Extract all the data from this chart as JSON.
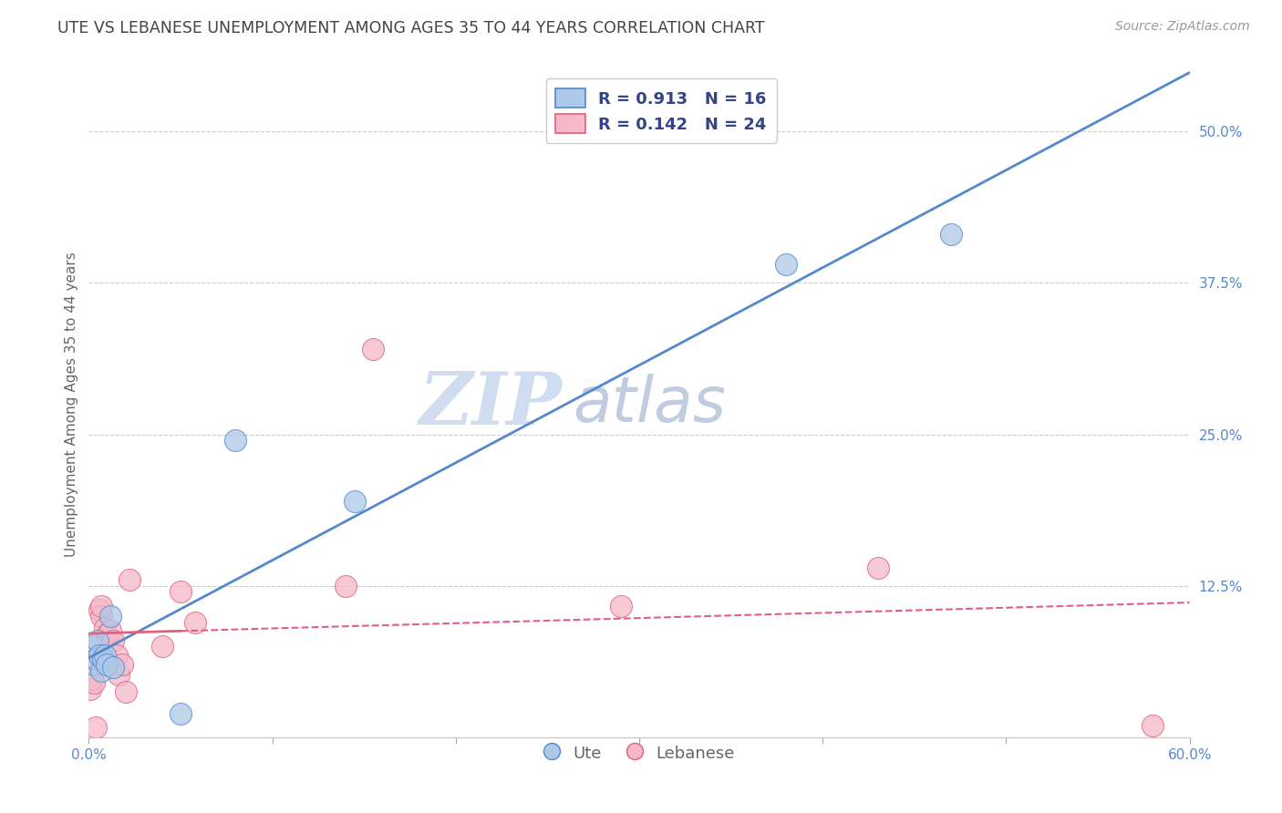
{
  "title": "UTE VS LEBANESE UNEMPLOYMENT AMONG AGES 35 TO 44 YEARS CORRELATION CHART",
  "source": "Source: ZipAtlas.com",
  "ylabel": "Unemployment Among Ages 35 to 44 years",
  "xlim": [
    0.0,
    0.6
  ],
  "ylim": [
    0.0,
    0.55
  ],
  "xticks": [
    0.0,
    0.1,
    0.2,
    0.3,
    0.4,
    0.5,
    0.6
  ],
  "yticks": [
    0.0,
    0.125,
    0.25,
    0.375,
    0.5
  ],
  "xtick_labels": [
    "0.0%",
    "",
    "",
    "",
    "",
    "",
    "60.0%"
  ],
  "ytick_labels": [
    "",
    "12.5%",
    "25.0%",
    "37.5%",
    "50.0%"
  ],
  "watermark_zip": "ZIP",
  "watermark_atlas": "atlas",
  "ute_R": 0.913,
  "ute_N": 16,
  "leb_R": 0.142,
  "leb_N": 24,
  "ute_color": "#adc8e8",
  "leb_color": "#f5b8c8",
  "ute_line_color": "#5588cc",
  "leb_line_color": "#e06080",
  "ute_x": [
    0.002,
    0.003,
    0.004,
    0.005,
    0.006,
    0.007,
    0.008,
    0.009,
    0.01,
    0.012,
    0.013,
    0.05,
    0.08,
    0.145,
    0.38,
    0.47
  ],
  "ute_y": [
    0.075,
    0.06,
    0.065,
    0.08,
    0.068,
    0.055,
    0.065,
    0.068,
    0.06,
    0.1,
    0.058,
    0.02,
    0.245,
    0.195,
    0.39,
    0.415
  ],
  "leb_x": [
    0.001,
    0.002,
    0.003,
    0.004,
    0.006,
    0.007,
    0.007,
    0.009,
    0.01,
    0.012,
    0.013,
    0.015,
    0.016,
    0.018,
    0.02,
    0.022,
    0.04,
    0.05,
    0.058,
    0.14,
    0.155,
    0.29,
    0.43,
    0.58
  ],
  "leb_y": [
    0.04,
    0.048,
    0.045,
    0.008,
    0.105,
    0.1,
    0.108,
    0.09,
    0.085,
    0.088,
    0.08,
    0.068,
    0.052,
    0.06,
    0.038,
    0.13,
    0.075,
    0.12,
    0.095,
    0.125,
    0.32,
    0.108,
    0.14,
    0.01
  ],
  "background_color": "#ffffff",
  "grid_color": "#cccccc",
  "title_color": "#444444",
  "axis_tick_color": "#5588cc"
}
